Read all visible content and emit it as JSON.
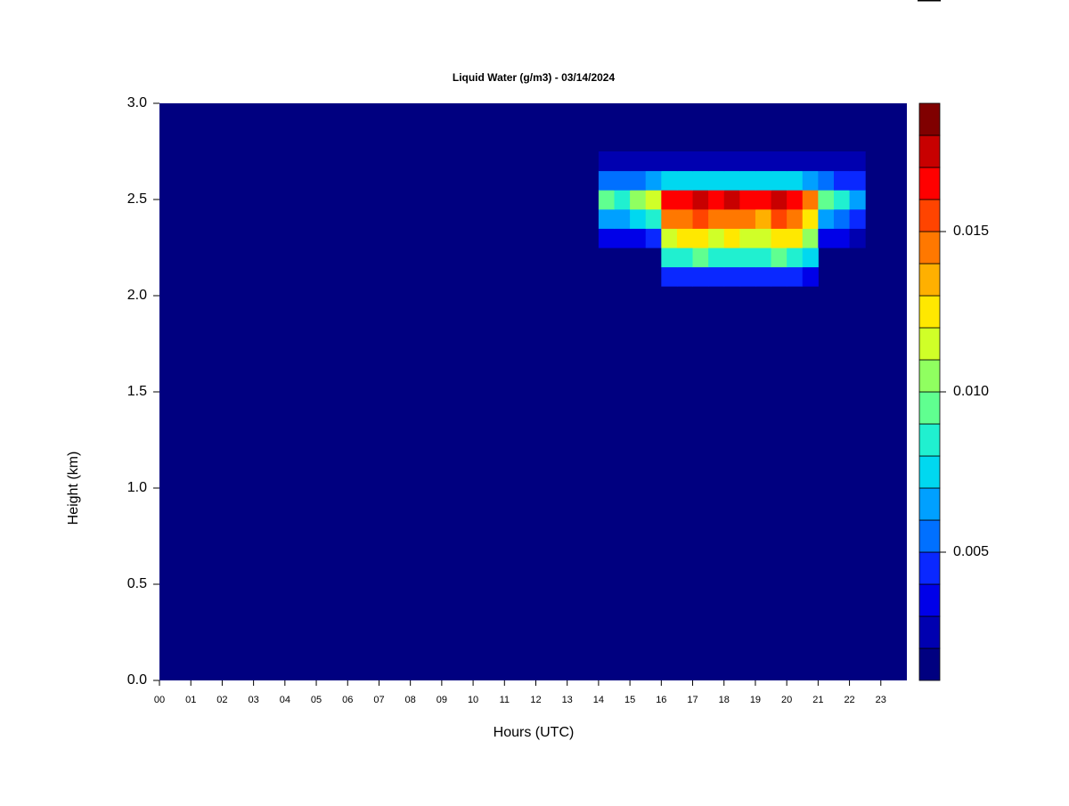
{
  "chart_data": {
    "type": "heatmap",
    "title": "Liquid Water (g/m3) - 03/14/2024",
    "xlabel": "Hours (UTC)",
    "ylabel": "Height (km)",
    "x": [
      14.25,
      14.75,
      15.25,
      15.75,
      16.25,
      16.75,
      17.25,
      17.75,
      18.25,
      18.75,
      19.25,
      19.75,
      20.25,
      20.75,
      21.25,
      21.75,
      22.25
    ],
    "y": [
      2.1,
      2.2,
      2.3,
      2.4,
      2.5,
      2.6,
      2.7
    ],
    "z": [
      [
        null,
        null,
        null,
        null,
        0.004,
        0.004,
        0.004,
        0.004,
        0.004,
        0.004,
        0.004,
        0.004,
        0.004,
        0.003,
        null,
        null,
        null
      ],
      [
        null,
        null,
        null,
        null,
        0.008,
        0.008,
        0.009,
        0.008,
        0.008,
        0.008,
        0.008,
        0.009,
        0.008,
        0.007,
        null,
        null,
        null
      ],
      [
        0.003,
        0.003,
        0.003,
        0.004,
        0.011,
        0.012,
        0.012,
        0.011,
        0.012,
        0.011,
        0.011,
        0.012,
        0.012,
        0.01,
        0.003,
        0.003,
        0.002
      ],
      [
        0.006,
        0.006,
        0.007,
        0.008,
        0.014,
        0.014,
        0.015,
        0.014,
        0.014,
        0.014,
        0.013,
        0.015,
        0.014,
        0.012,
        0.006,
        0.005,
        0.004
      ],
      [
        0.009,
        0.008,
        0.01,
        0.011,
        0.016,
        0.016,
        0.017,
        0.016,
        0.017,
        0.016,
        0.016,
        0.017,
        0.016,
        0.014,
        0.009,
        0.008,
        0.006
      ],
      [
        0.005,
        0.005,
        0.005,
        0.006,
        0.007,
        0.007,
        0.007,
        0.007,
        0.007,
        0.007,
        0.007,
        0.007,
        0.007,
        0.006,
        0.005,
        0.004,
        0.004
      ],
      [
        0.002,
        0.002,
        0.002,
        0.002,
        0.002,
        0.002,
        0.002,
        0.002,
        0.002,
        0.002,
        0.002,
        0.002,
        0.002,
        0.002,
        0.002,
        0.002,
        0.002
      ]
    ],
    "xlim": [
      0,
      23.83
    ],
    "ylim": [
      0,
      3
    ],
    "xticks": [
      {
        "value": 0,
        "label": "00"
      },
      {
        "value": 1,
        "label": "01"
      },
      {
        "value": 2,
        "label": "02"
      },
      {
        "value": 3,
        "label": "03"
      },
      {
        "value": 4,
        "label": "04"
      },
      {
        "value": 5,
        "label": "05"
      },
      {
        "value": 6,
        "label": "06"
      },
      {
        "value": 7,
        "label": "07"
      },
      {
        "value": 8,
        "label": "08"
      },
      {
        "value": 9,
        "label": "09"
      },
      10,
      11,
      12,
      13,
      14,
      15,
      16,
      17,
      18,
      19,
      20,
      21,
      22,
      23
    ],
    "yticks": [
      {
        "value": 0,
        "label": "0.0"
      },
      0.5,
      {
        "value": 1,
        "label": "1.0"
      },
      1.5,
      {
        "value": 2,
        "label": "2.0"
      },
      2.5,
      {
        "value": 3,
        "label": "3.0"
      }
    ],
    "levels": [
      0.001,
      0.002,
      0.003,
      0.004,
      0.005,
      0.006,
      0.007,
      0.008,
      0.009,
      0.01,
      0.011,
      0.012,
      0.013,
      0.014,
      0.015,
      0.016,
      0.017,
      0.018,
      0.019
    ],
    "colors": [
      "#000080",
      "#0000b0",
      "#0000e8",
      "#0a28ff",
      "#0070ff",
      "#00a0ff",
      "#00d8f0",
      "#20f0d0",
      "#60ff90",
      "#90ff60",
      "#d0ff28",
      "#ffe800",
      "#ffb000",
      "#ff7800",
      "#ff4400",
      "#ff0000",
      "#c80000",
      "#800000"
    ],
    "cticks": [
      0.005,
      {
        "value": 0.01,
        "label": "0.010"
      },
      0.015
    ]
  }
}
